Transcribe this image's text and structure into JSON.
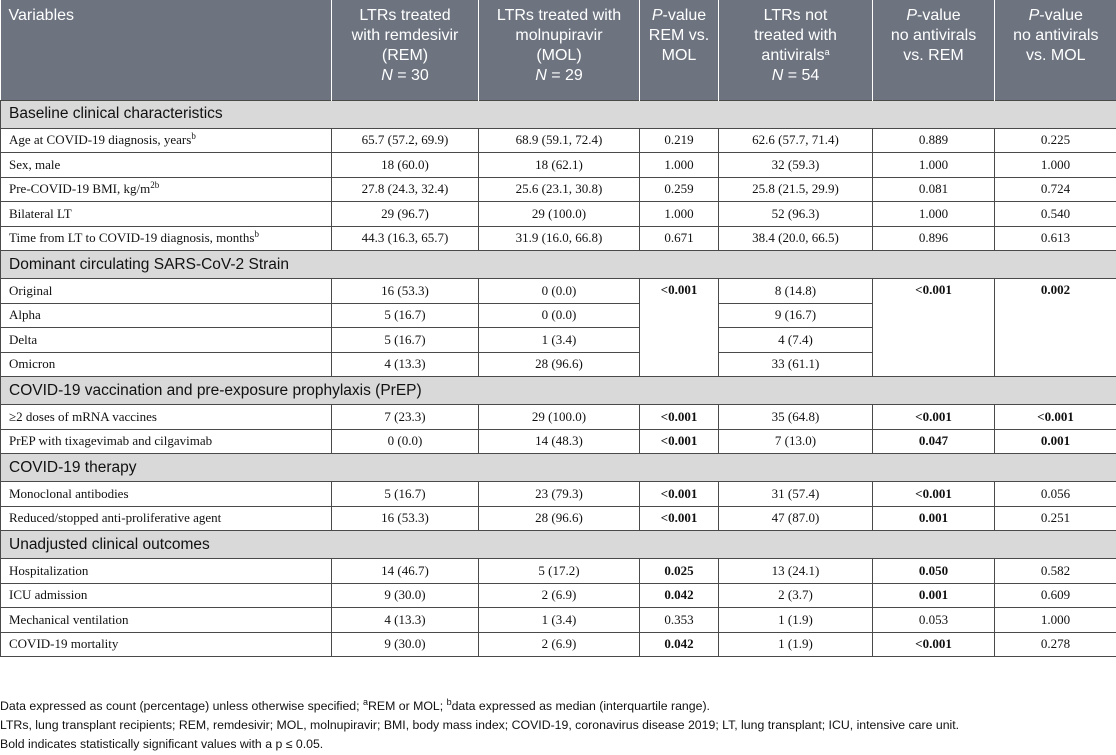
{
  "header": {
    "variables": "Variables",
    "rem": {
      "l1": "LTRs treated",
      "l2": "with remdesivir",
      "l3": "(REM)",
      "n_label": "N",
      "n_value": "= 30"
    },
    "mol": {
      "l1": "LTRs treated with",
      "l2": "molnupiravir",
      "l3": "(MOL)",
      "n_label": "N",
      "n_value": "= 29"
    },
    "p_rem_mol": {
      "p": "P",
      "l1": "-value",
      "l2": "REM vs.",
      "l3": "MOL"
    },
    "none": {
      "l1": "LTRs not",
      "l2": "treated with",
      "l3": "antivirals",
      "sup": "a",
      "n_label": "N",
      "n_value": "= 54"
    },
    "p_none_rem": {
      "p": "P",
      "l1": "-value",
      "l2": "no antivirals",
      "l3": "vs. REM"
    },
    "p_none_mol": {
      "p": "P",
      "l1": "-value",
      "l2": "no antivirals",
      "l3": "vs. MOL"
    }
  },
  "sections": {
    "baseline": "Baseline clinical characteristics",
    "strain": "Dominant circulating SARS-CoV-2 Strain",
    "vaccination": "COVID-19 vaccination and pre-exposure prophylaxis (PrEP)",
    "therapy": "COVID-19 therapy",
    "outcomes": "Unadjusted clinical outcomes"
  },
  "baseline": [
    {
      "label": "Age at COVID-19 diagnosis, years",
      "sup": "b",
      "rem": "65.7 (57.2, 69.9)",
      "mol": "68.9 (59.1, 72.4)",
      "p1": "0.219",
      "none": "62.6 (57.7, 71.4)",
      "p2": "0.889",
      "p3": "0.225"
    },
    {
      "label": "Sex, male",
      "sup": "",
      "rem": "18 (60.0)",
      "mol": "18 (62.1)",
      "p1": "1.000",
      "none": "32 (59.3)",
      "p2": "1.000",
      "p3": "1.000"
    },
    {
      "label": "Pre-COVID-19 BMI, kg/m",
      "sup": "2b",
      "rem": "27.8 (24.3, 32.4)",
      "mol": "25.6 (23.1, 30.8)",
      "p1": "0.259",
      "none": "25.8 (21.5, 29.9)",
      "p2": "0.081",
      "p3": "0.724"
    },
    {
      "label": "Bilateral LT",
      "sup": "",
      "rem": "29 (96.7)",
      "mol": "29 (100.0)",
      "p1": "1.000",
      "none": "52 (96.3)",
      "p2": "1.000",
      "p3": "0.540"
    },
    {
      "label": "Time from LT to COVID-19 diagnosis, months",
      "sup": "b",
      "rem": "44.3 (16.3, 65.7)",
      "mol": "31.9 (16.0, 66.8)",
      "p1": "0.671",
      "none": "38.4 (20.0, 66.5)",
      "p2": "0.896",
      "p3": "0.613"
    }
  ],
  "strain": {
    "p1": "<0.001",
    "p2": "<0.001",
    "p3": "0.002",
    "rows": [
      {
        "label": "Original",
        "rem": "16 (53.3)",
        "mol": "0 (0.0)",
        "none": "8 (14.8)"
      },
      {
        "label": "Alpha",
        "rem": "5 (16.7)",
        "mol": "0 (0.0)",
        "none": "9 (16.7)"
      },
      {
        "label": "Delta",
        "rem": "5 (16.7)",
        "mol": "1 (3.4)",
        "none": "4 (7.4)"
      },
      {
        "label": "Omicron",
        "rem": "4 (13.3)",
        "mol": "28 (96.6)",
        "none": "33 (61.1)"
      }
    ]
  },
  "vaccination": [
    {
      "label": "≥2 doses of mRNA vaccines",
      "rem": "7 (23.3)",
      "mol": "29 (100.0)",
      "p1": "<0.001",
      "none": "35 (64.8)",
      "p2": "<0.001",
      "p3": "<0.001"
    },
    {
      "label": "PrEP with tixagevimab and cilgavimab",
      "rem": "0 (0.0)",
      "mol": "14 (48.3)",
      "p1": "<0.001",
      "none": "7 (13.0)",
      "p2": "0.047",
      "p3": "0.001"
    }
  ],
  "therapy": [
    {
      "label": "Monoclonal antibodies",
      "rem": "5 (16.7)",
      "mol": "23 (79.3)",
      "p1": "<0.001",
      "none": "31 (57.4)",
      "p2": "<0.001",
      "p3": "0.056"
    },
    {
      "label": "Reduced/stopped anti-proliferative agent",
      "rem": "16 (53.3)",
      "mol": "28 (96.6)",
      "p1": "<0.001",
      "none": "47 (87.0)",
      "p2": "0.001",
      "p3": "0.251"
    }
  ],
  "outcomes": [
    {
      "label": "Hospitalization",
      "rem": "14 (46.7)",
      "mol": "5 (17.2)",
      "p1": "0.025",
      "none": "13 (24.1)",
      "p2": "0.050",
      "p3": "0.582"
    },
    {
      "label": "ICU admission",
      "rem": "9 (30.0)",
      "mol": "2 (6.9)",
      "p1": "0.042",
      "none": "2 (3.7)",
      "p2": "0.001",
      "p3": "0.609"
    },
    {
      "label": "Mechanical ventilation",
      "rem": "4 (13.3)",
      "mol": "1 (3.4)",
      "p1": "0.353",
      "none": "1 (1.9)",
      "p2": "0.053",
      "p3": "1.000"
    },
    {
      "label": "COVID-19 mortality",
      "rem": "9 (30.0)",
      "mol": "2 (6.9)",
      "p1": "0.042",
      "none": "1 (1.9)",
      "p2": "<0.001",
      "p3": "0.278"
    }
  ],
  "footnotes": {
    "line1_a": "Data expressed as count (percentage) unless otherwise specified; ",
    "sup_a": "a",
    "line1_b": "REM or MOL; ",
    "sup_b": "b",
    "line1_c": "data expressed as median (interquartile range).",
    "line2": "LTRs, lung transplant recipients; REM, remdesivir; MOL, molnupiravir; BMI, body mass index; COVID-19, coronavirus disease 2019; LT, lung transplant; ICU, intensive care unit.",
    "line3": "Bold indicates statistically significant values with a p ≤ 0.05."
  }
}
